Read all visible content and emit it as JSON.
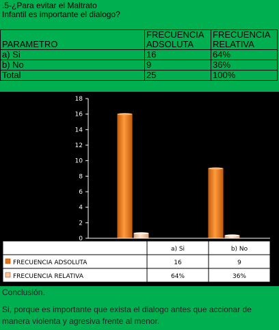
{
  "heading": {
    "line1": ".5-¿Para evitar el Maltrato",
    "line2": "Infantil es importante el dialogo?"
  },
  "table": {
    "header": [
      "PARAMETRO",
      "FRECUENCIA ADSOLUTA",
      "FRECUENCIA RELATIVA"
    ],
    "header_col1_lines": [
      "FRECUENCIA",
      "ADSOLUTA"
    ],
    "header_col2_lines": [
      "FRECUENCIA",
      "RELATIVA"
    ],
    "rows": [
      [
        "a) Si",
        "16",
        "64%"
      ],
      [
        "b) No",
        "9",
        "36%"
      ],
      [
        "Total",
        "25",
        "100%"
      ]
    ]
  },
  "chart_data": {
    "type": "bar",
    "categories": [
      "a) Si",
      "b) No"
    ],
    "series": [
      {
        "name": "FRECUENCIA ADSOLUTA",
        "values": [
          16,
          9
        ],
        "labels": [
          "16",
          "9"
        ],
        "color": "#e8761a"
      },
      {
        "name": "FRECUENCIA RELATIVA",
        "values": [
          0.64,
          0.36
        ],
        "labels": [
          "64%",
          "36%"
        ],
        "color": "#f4c7a2"
      }
    ],
    "ylim": [
      0,
      18
    ],
    "yticks": [
      "0",
      "2",
      "4",
      "6",
      "8",
      "10",
      "12",
      "14",
      "16",
      "18"
    ],
    "grid": false,
    "legend": "data-table below plot",
    "background": "#000000",
    "plot_area": "#ffffff"
  },
  "conclusion": {
    "label": "Conclusión.",
    "text": "Si, porque es importante que exista el dialogo antes que accionar de manera violenta y agresiva frente al menor."
  }
}
